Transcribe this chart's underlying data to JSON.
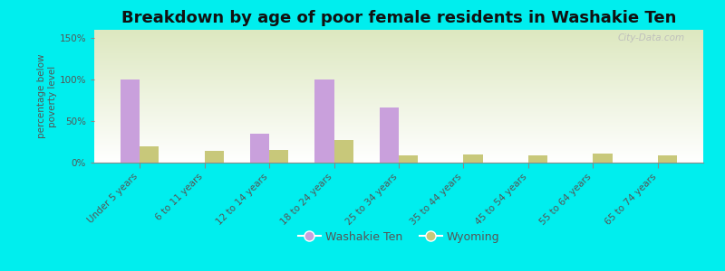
{
  "title": "Breakdown by age of poor female residents in Washakie Ten",
  "ylabel": "percentage below\npoverty level",
  "categories": [
    "Under 5 years",
    "6 to 11 years",
    "12 to 14 years",
    "18 to 24 years",
    "25 to 34 years",
    "35 to 44 years",
    "45 to 54 years",
    "55 to 64 years",
    "65 to 74 years"
  ],
  "washakie_values": [
    100,
    0,
    35,
    100,
    66,
    0,
    0,
    0,
    0
  ],
  "wyoming_values": [
    20,
    14,
    15,
    27,
    9,
    10,
    9,
    11,
    9
  ],
  "washakie_color": "#c9a0dc",
  "wyoming_color": "#c8c87a",
  "background_outer": "#00eeee",
  "ylim": [
    0,
    160
  ],
  "yticks": [
    0,
    50,
    100,
    150
  ],
  "ytick_labels": [
    "0%",
    "50%",
    "100%",
    "150%"
  ],
  "bar_width": 0.3,
  "title_fontsize": 13,
  "label_fontsize": 7.5,
  "tick_fontsize": 7.5,
  "legend_labels": [
    "Washakie Ten",
    "Wyoming"
  ],
  "watermark": "City-Data.com"
}
